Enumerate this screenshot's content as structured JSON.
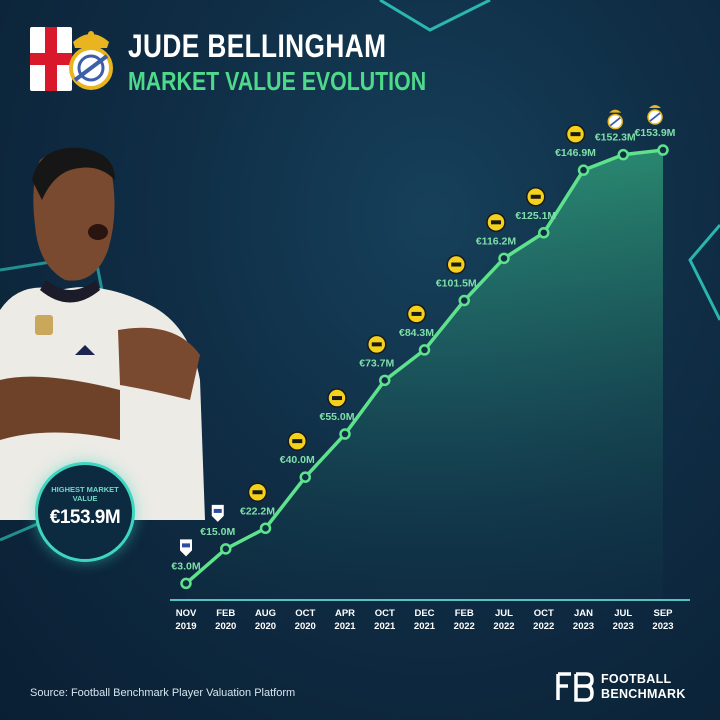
{
  "header": {
    "player_name": "JUDE BELLINGHAM",
    "subtitle": "MARKET VALUE EVOLUTION"
  },
  "badge": {
    "label": "HIGHEST MARKET VALUE",
    "value": "€153.9M"
  },
  "footer": {
    "source": "Source: Football Benchmark Player Valuation Platform",
    "brand_line1": "FOOTBALL",
    "brand_line2": "BENCHMARK",
    "brand_mark": "FB"
  },
  "colors": {
    "line": "#5ee38c",
    "title": "#ffffff",
    "subtitle": "#4fd98a",
    "accent": "#3fd6c0",
    "label_text": "#7ee0a8",
    "axis": "#57c2c4"
  },
  "chart_data": {
    "type": "area",
    "categories": [
      {
        "month": "NOV",
        "year": "2019"
      },
      {
        "month": "FEB",
        "year": "2020"
      },
      {
        "month": "AUG",
        "year": "2020"
      },
      {
        "month": "OCT",
        "year": "2020"
      },
      {
        "month": "APR",
        "year": "2021"
      },
      {
        "month": "OCT",
        "year": "2021"
      },
      {
        "month": "DEC",
        "year": "2021"
      },
      {
        "month": "FEB",
        "year": "2022"
      },
      {
        "month": "JUL",
        "year": "2022"
      },
      {
        "month": "OCT",
        "year": "2022"
      },
      {
        "month": "JAN",
        "year": "2023"
      },
      {
        "month": "JUL",
        "year": "2023"
      },
      {
        "month": "SEP",
        "year": "2023"
      }
    ],
    "values": [
      3.0,
      15.0,
      22.2,
      40.0,
      55.0,
      73.7,
      84.3,
      101.5,
      116.2,
      125.1,
      146.9,
      152.3,
      153.9
    ],
    "labels": [
      "€3.0M",
      "€15.0M",
      "€22.2M",
      "€40.0M",
      "€55.0M",
      "€73.7M",
      "€84.3M",
      "€101.5M",
      "€116.2M",
      "€125.1M",
      "€146.9M",
      "€152.3M",
      "€153.9M"
    ],
    "clubs": [
      "birmingham",
      "birmingham",
      "dortmund",
      "dortmund",
      "dortmund",
      "dortmund",
      "dortmund",
      "dortmund",
      "dortmund",
      "dortmund",
      "dortmund",
      "real-madrid",
      "real-madrid"
    ],
    "ylim": [
      0,
      160
    ]
  }
}
